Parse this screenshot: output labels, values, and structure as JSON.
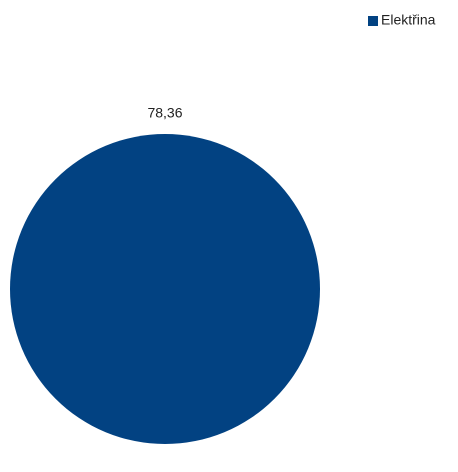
{
  "chart_data": {
    "type": "pie",
    "categories": [
      "Elektřina"
    ],
    "values": [
      78.36
    ],
    "value_labels": [
      "78,36"
    ],
    "colors": [
      "#024282"
    ],
    "legend": "top-right"
  }
}
